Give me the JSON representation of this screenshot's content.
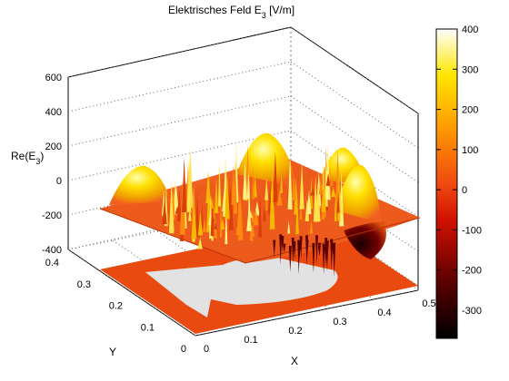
{
  "chart_data": {
    "type": "surface",
    "title": "Elektrisches Feld",
    "title_symbol": "E",
    "title_subscript": "3",
    "title_unit": "[V/m]",
    "zlabel": "Re(E",
    "zlabel_subscript": "3",
    "zlabel_close": ")",
    "xlabel": "X",
    "ylabel": "Y",
    "xlim": [
      0,
      0.5
    ],
    "ylim": [
      0,
      0.4
    ],
    "zlim": [
      -400,
      600
    ],
    "x_ticks": [
      "0",
      "0.1",
      "0.2",
      "0.3",
      "0.4",
      "0.5"
    ],
    "y_ticks": [
      "0",
      "0.1",
      "0.2",
      "0.3",
      "0.4"
    ],
    "z_ticks": [
      "-400",
      "-200",
      "0",
      "200",
      "400",
      "600"
    ],
    "grid": true,
    "colormap": "hot",
    "colorbar": {
      "min": -370,
      "max": 400,
      "ticks": [
        "400",
        "300",
        "200",
        "100",
        "0",
        "-100",
        "-200",
        "-300"
      ]
    },
    "surface_peaks": [
      {
        "x": 0.05,
        "y": 0.3,
        "z": 190
      },
      {
        "x": 0.25,
        "y": 0.33,
        "z": 260
      },
      {
        "x": 0.4,
        "y": 0.3,
        "z": 200
      },
      {
        "x": 0.42,
        "y": 0.15,
        "z": 260
      },
      {
        "x": 0.45,
        "y": 0.1,
        "z": -370
      }
    ],
    "colors": {
      "base_plane": "#e84a10",
      "surface": "#f06020",
      "domain_hole": "#e2e2e2"
    }
  }
}
